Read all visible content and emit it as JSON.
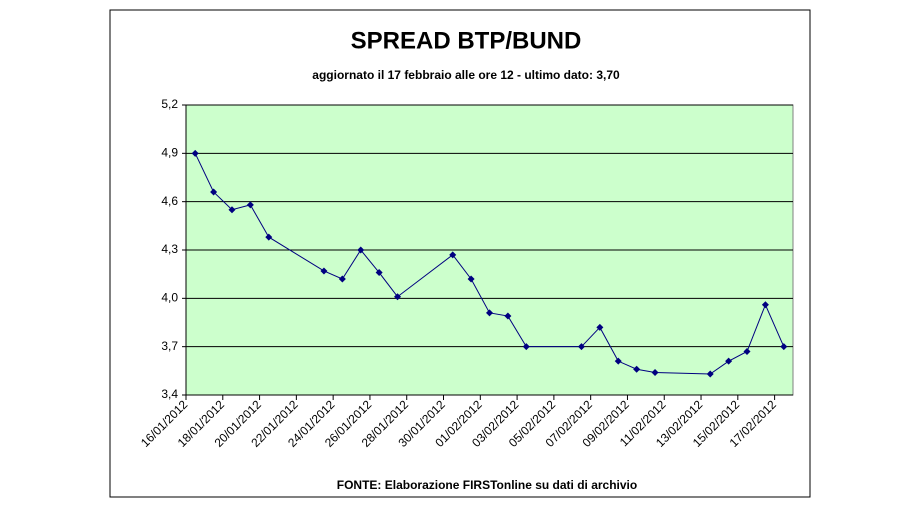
{
  "chart_data": {
    "type": "line",
    "title": "SPREAD BTP/BUND",
    "subtitle": "aggiornato il 17 febbraio alle ore 12 - ultimo dato: 3,70",
    "source": "FONTE: Elaborazione FIRSTonline su dati di archivio",
    "x": [
      "16/01/2012",
      "17/01/2012",
      "18/01/2012",
      "19/01/2012",
      "20/01/2012",
      "23/01/2012",
      "24/01/2012",
      "25/01/2012",
      "26/01/2012",
      "27/01/2012",
      "30/01/2012",
      "31/01/2012",
      "01/02/2012",
      "02/02/2012",
      "03/02/2012",
      "06/02/2012",
      "07/02/2012",
      "08/02/2012",
      "09/02/2012",
      "10/02/2012",
      "13/02/2012",
      "14/02/2012",
      "15/02/2012",
      "16/02/2012",
      "17/02/2012"
    ],
    "series": [
      {
        "name": "Spread BTP/Bund",
        "color": "#000080",
        "values": [
          4.9,
          4.66,
          4.55,
          4.58,
          4.38,
          4.17,
          4.12,
          4.3,
          4.16,
          4.01,
          4.27,
          4.12,
          3.91,
          3.89,
          3.7,
          3.7,
          3.82,
          3.61,
          3.56,
          3.54,
          3.53,
          3.61,
          3.67,
          3.96,
          3.7
        ]
      }
    ],
    "xlim": [
      "16/01/2012",
      "17/02/2012"
    ],
    "xticks": [
      "16/01/2012",
      "18/01/2012",
      "20/01/2012",
      "22/01/2012",
      "24/01/2012",
      "26/01/2012",
      "28/01/2012",
      "30/01/2012",
      "01/02/2012",
      "03/02/2012",
      "05/02/2012",
      "07/02/2012",
      "09/02/2012",
      "11/02/2012",
      "13/02/2012",
      "15/02/2012",
      "17/02/2012"
    ],
    "ylim": [
      3.4,
      5.2
    ],
    "yticks": [
      {
        "value": 3.4,
        "label": "3,4"
      },
      {
        "value": 3.7,
        "label": "3,7"
      },
      {
        "value": 4.0,
        "label": "4,0"
      },
      {
        "value": 4.3,
        "label": "4,3"
      },
      {
        "value": 4.6,
        "label": "4,6"
      },
      {
        "value": 4.9,
        "label": "4,9"
      },
      {
        "value": 5.2,
        "label": "5,2"
      }
    ],
    "grid": true,
    "plot_background": "#ccffcc"
  }
}
